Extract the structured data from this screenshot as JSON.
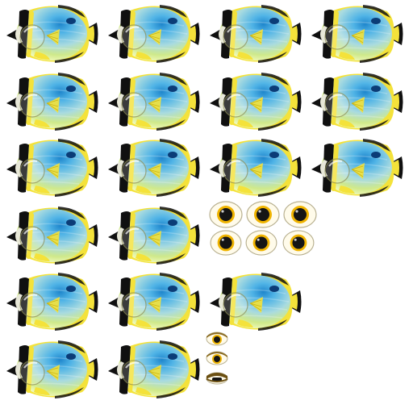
{
  "sheet": {
    "kind": "sprite-sheet",
    "subject": "butterflyfish",
    "colors": {
      "body_light": "#f3fbbf",
      "body_mid": "#cfe98a",
      "body_blue": "#4fb3e6",
      "body_deep": "#1f86cc",
      "fin_yellow": "#f4e23a",
      "stripe_dark": "#101010",
      "eye_white": "#fffbea",
      "iris": "#f0b400",
      "pupil": "#151515"
    },
    "fish_frames": [
      {
        "name": "swim-frame-1",
        "icon": "butterflyfish-icon"
      },
      {
        "name": "swim-frame-2",
        "icon": "butterflyfish-icon"
      },
      {
        "name": "swim-frame-3",
        "icon": "butterflyfish-icon"
      },
      {
        "name": "swim-frame-4",
        "icon": "butterflyfish-icon"
      },
      {
        "name": "swim-frame-5",
        "icon": "butterflyfish-icon"
      },
      {
        "name": "swim-frame-6",
        "icon": "butterflyfish-icon"
      },
      {
        "name": "swim-frame-7",
        "icon": "butterflyfish-icon"
      },
      {
        "name": "swim-frame-8",
        "icon": "butterflyfish-icon"
      },
      {
        "name": "swim-frame-9",
        "icon": "butterflyfish-icon"
      },
      {
        "name": "swim-frame-10",
        "icon": "butterflyfish-icon"
      },
      {
        "name": "swim-frame-11",
        "icon": "butterflyfish-icon"
      },
      {
        "name": "swim-frame-12",
        "icon": "butterflyfish-icon"
      },
      {
        "name": "swim-frame-13",
        "icon": "butterflyfish-icon"
      },
      {
        "name": "swim-frame-14",
        "icon": "butterflyfish-icon"
      },
      {
        "name": "swim-frame-15",
        "icon": "butterflyfish-icon"
      },
      {
        "name": "swim-frame-16",
        "icon": "butterflyfish-icon"
      },
      {
        "name": "swim-frame-17",
        "icon": "butterflyfish-icon"
      },
      {
        "name": "swim-frame-18",
        "icon": "butterflyfish-icon"
      },
      {
        "name": "swim-frame-19",
        "icon": "butterflyfish-icon"
      }
    ],
    "eye_frames": [
      {
        "name": "eye-frame-1",
        "icon": "eye-open-icon"
      },
      {
        "name": "eye-frame-2",
        "icon": "eye-open-icon"
      },
      {
        "name": "eye-frame-3",
        "icon": "eye-open-icon"
      },
      {
        "name": "eye-frame-4",
        "icon": "eye-open-icon"
      },
      {
        "name": "eye-frame-5",
        "icon": "eye-open-icon"
      },
      {
        "name": "eye-frame-6",
        "icon": "eye-open-icon"
      },
      {
        "name": "eye-blink-frame-1",
        "icon": "eye-half-closed-icon"
      },
      {
        "name": "eye-blink-frame-2",
        "icon": "eye-half-closed-icon"
      },
      {
        "name": "eye-blink-frame-3",
        "icon": "eye-closed-icon"
      }
    ]
  }
}
